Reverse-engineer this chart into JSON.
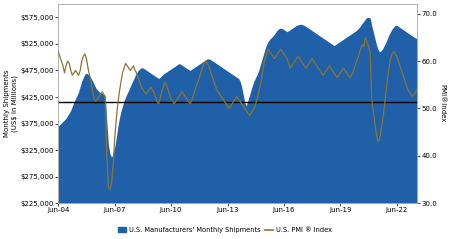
{
  "background_color": "#ffffff",
  "fill_color": "#2060a8",
  "line_color": "#8B7536",
  "hline_y_shipments": 415000,
  "hline_color": "#000000",
  "ylim_left": [
    225000,
    600000
  ],
  "ylim_right": [
    30,
    72
  ],
  "yticks_left": [
    225000,
    275000,
    325000,
    375000,
    425000,
    475000,
    525000,
    575000
  ],
  "yticks_right": [
    30.0,
    40.0,
    50.0,
    60.0,
    70.0
  ],
  "xtick_labels": [
    "Jun-04",
    "Jun-07",
    "Jun-10",
    "Jun-13",
    "Jun-16",
    "Jun-19",
    "Jun-22"
  ],
  "xtick_pos": [
    0,
    36,
    72,
    108,
    144,
    180,
    216
  ],
  "ylabel_left": "Monthly Shipments\n(US$ in Millions)",
  "ylabel_right": "PMI®Index",
  "legend_shipments": "U.S. Manufacturers' Monthly Shipments",
  "legend_pmi": "U.S. PMI ® Index",
  "shipments": [
    370000,
    373000,
    376000,
    379000,
    382000,
    385000,
    390000,
    395000,
    400000,
    408000,
    415000,
    422000,
    428000,
    435000,
    445000,
    455000,
    462000,
    468000,
    470000,
    468000,
    465000,
    460000,
    455000,
    448000,
    442000,
    438000,
    435000,
    433000,
    432000,
    430000,
    428000,
    378000,
    335000,
    318000,
    312000,
    318000,
    330000,
    348000,
    368000,
    385000,
    398000,
    408000,
    418000,
    425000,
    432000,
    438000,
    445000,
    452000,
    458000,
    465000,
    470000,
    475000,
    478000,
    480000,
    480000,
    478000,
    476000,
    474000,
    472000,
    470000,
    468000,
    466000,
    464000,
    462000,
    460000,
    462000,
    465000,
    468000,
    470000,
    472000,
    474000,
    476000,
    478000,
    480000,
    482000,
    484000,
    486000,
    488000,
    487000,
    485000,
    483000,
    481000,
    479000,
    477000,
    475000,
    477000,
    479000,
    481000,
    483000,
    485000,
    487000,
    489000,
    491000,
    493000,
    495000,
    497000,
    497000,
    496000,
    494000,
    492000,
    490000,
    488000,
    486000,
    484000,
    482000,
    480000,
    478000,
    476000,
    474000,
    472000,
    470000,
    468000,
    466000,
    464000,
    462000,
    460000,
    455000,
    445000,
    430000,
    415000,
    408000,
    418000,
    428000,
    438000,
    448000,
    456000,
    462000,
    468000,
    476000,
    486000,
    496000,
    506000,
    516000,
    524000,
    530000,
    534000,
    537000,
    540000,
    544000,
    548000,
    552000,
    554000,
    555000,
    554000,
    552000,
    550000,
    548000,
    550000,
    552000,
    554000,
    556000,
    558000,
    560000,
    561000,
    562000,
    562000,
    561000,
    560000,
    558000,
    556000,
    554000,
    552000,
    550000,
    548000,
    546000,
    544000,
    542000,
    540000,
    538000,
    536000,
    534000,
    532000,
    530000,
    528000,
    526000,
    524000,
    522000,
    524000,
    526000,
    528000,
    530000,
    532000,
    534000,
    536000,
    538000,
    540000,
    542000,
    544000,
    546000,
    548000,
    550000,
    553000,
    556000,
    560000,
    564000,
    568000,
    572000,
    575000,
    575000,
    574000,
    560000,
    548000,
    536000,
    524000,
    515000,
    510000,
    512000,
    516000,
    522000,
    528000,
    535000,
    542000,
    548000,
    553000,
    557000,
    560000,
    560000,
    558000,
    556000,
    554000,
    552000,
    550000,
    548000,
    546000,
    544000,
    542000,
    540000,
    538000,
    536000,
    535000
  ],
  "pmi": [
    62.0,
    61.0,
    60.0,
    59.0,
    57.5,
    59.0,
    60.0,
    59.5,
    58.0,
    57.0,
    57.5,
    58.0,
    57.5,
    57.0,
    58.0,
    60.0,
    61.0,
    61.5,
    60.5,
    58.5,
    57.0,
    55.5,
    53.5,
    52.0,
    51.5,
    52.0,
    52.5,
    53.0,
    53.5,
    53.0,
    52.0,
    40.0,
    33.5,
    32.9,
    34.0,
    38.0,
    43.5,
    47.5,
    51.0,
    53.5,
    55.5,
    57.5,
    58.5,
    59.5,
    59.0,
    58.5,
    58.0,
    58.5,
    59.0,
    58.0,
    57.5,
    56.5,
    55.5,
    54.5,
    54.0,
    53.5,
    53.0,
    53.5,
    54.0,
    54.5,
    54.0,
    53.5,
    52.5,
    51.5,
    51.0,
    52.0,
    53.5,
    54.5,
    55.5,
    55.0,
    54.0,
    53.0,
    52.0,
    51.5,
    51.0,
    51.5,
    52.0,
    52.5,
    53.0,
    53.5,
    53.0,
    52.5,
    52.0,
    51.5,
    51.0,
    51.5,
    52.5,
    53.5,
    54.5,
    55.5,
    56.5,
    57.5,
    58.5,
    59.5,
    60.0,
    59.5,
    59.0,
    58.0,
    57.0,
    56.0,
    55.0,
    54.0,
    53.5,
    53.0,
    52.5,
    52.0,
    51.5,
    51.0,
    50.5,
    50.0,
    50.5,
    51.0,
    51.5,
    52.0,
    52.5,
    52.0,
    51.5,
    51.0,
    50.5,
    50.0,
    49.5,
    49.0,
    48.5,
    49.0,
    49.5,
    50.0,
    51.0,
    52.0,
    53.5,
    55.0,
    57.0,
    59.0,
    60.5,
    61.5,
    62.5,
    62.0,
    61.5,
    61.0,
    60.5,
    61.0,
    61.5,
    62.0,
    62.5,
    62.0,
    61.5,
    61.0,
    60.5,
    59.5,
    58.5,
    59.0,
    59.5,
    60.0,
    60.5,
    61.0,
    60.5,
    60.0,
    59.5,
    59.0,
    58.5,
    59.0,
    59.5,
    60.0,
    60.5,
    60.0,
    59.5,
    59.0,
    58.5,
    58.0,
    57.5,
    57.0,
    57.5,
    58.0,
    58.5,
    59.0,
    58.5,
    58.0,
    57.5,
    57.0,
    56.5,
    57.0,
    57.5,
    58.0,
    58.5,
    58.0,
    57.5,
    57.0,
    56.5,
    57.0,
    57.5,
    58.5,
    59.5,
    60.5,
    61.5,
    62.5,
    63.5,
    63.0,
    65.0,
    64.0,
    63.0,
    62.0,
    52.0,
    49.5,
    47.0,
    44.5,
    43.0,
    43.5,
    45.5,
    47.5,
    50.0,
    53.0,
    56.0,
    58.5,
    60.5,
    61.5,
    62.0,
    61.5,
    61.0,
    60.0,
    59.0,
    58.0,
    57.0,
    56.0,
    55.0,
    54.0,
    53.5,
    53.0,
    52.5,
    53.0,
    53.5,
    54.0
  ]
}
